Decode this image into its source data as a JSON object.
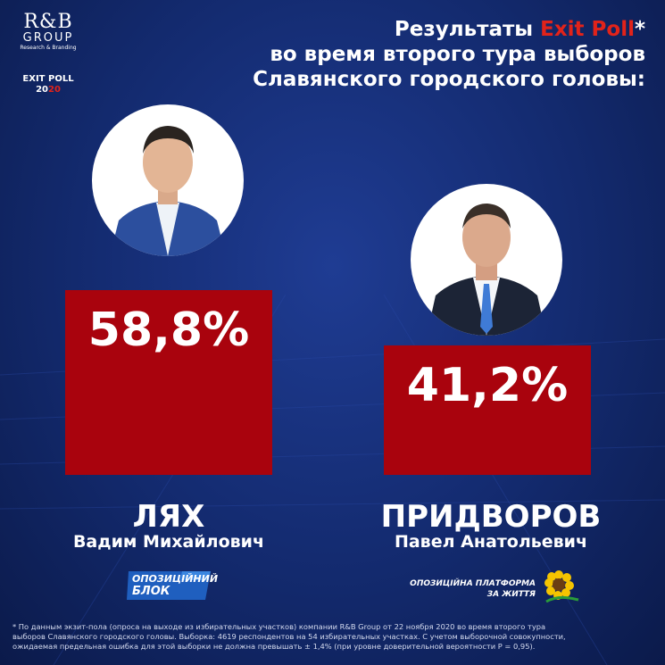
{
  "logo": {
    "rb": "R&B",
    "group": "GROUP",
    "subtitle": "Research & Branding"
  },
  "exit_poll": {
    "label": "EXIT POLL",
    "year_start": "20",
    "year_end": "20"
  },
  "title": {
    "line1_before": "Результаты ",
    "line1_highlight": "Exit Poll",
    "line1_after": "*",
    "line2": "во время второго тура выборов",
    "line3": "Славянского городского головы:"
  },
  "colors": {
    "background": "#132a6e",
    "bar": "#a9030d",
    "accent_red": "#e2231a",
    "text": "#ffffff"
  },
  "chart_data": {
    "type": "bar",
    "categories": [
      "ЛЯХ",
      "ПРИДВОРОВ"
    ],
    "values": [
      58.8,
      41.2
    ],
    "value_labels": [
      "58,8%",
      "41,2%"
    ],
    "ylim": [
      0,
      60
    ]
  },
  "candidates": [
    {
      "last_name": "ЛЯХ",
      "first_names": "Вадим Михайлович",
      "party_line1": "ОПОЗИЦІЙНИЙ",
      "party_line2": "БЛОК"
    },
    {
      "last_name": "ПРИДВОРОВ",
      "first_names": "Павел Анатольевич",
      "party_line1": "ОПОЗИЦІЙНА ПЛАТФОРМА –",
      "party_line2": "ЗА ЖИТТЯ"
    }
  ],
  "footnote": {
    "line1": "* По данным экзит-пола (опроса на выходе из избирательных участков) компании R&B Group от 22 ноября 2020 во время второго тура",
    "line2": "выборов Славянского городского головы. Выборка: 4619 респондентов на 54 избирательных участках. С учетом выборочной совокупности,",
    "line3": "ожидаемая предельная ошибка для этой выборки не должна превышать ± 1,4% (при уровне доверительной вероятности P = 0,95)."
  }
}
